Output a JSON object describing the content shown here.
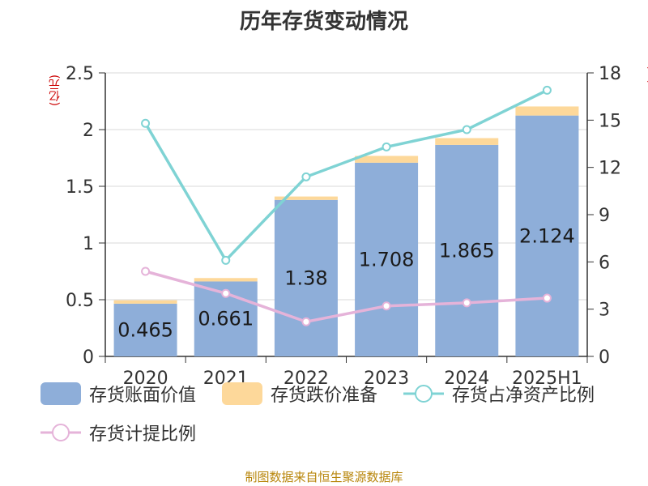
{
  "title": "历年存货变动情况",
  "unit_left": "(亿元)",
  "unit_right": "(%)",
  "source": "制图数据来自恒生聚源数据库",
  "colors": {
    "book_value": "#8eaed9",
    "impairment": "#fdd89a",
    "ratio_net_assets": "#7fd3d4",
    "provision_ratio": "#e5b3d9"
  },
  "legend": [
    {
      "label": "存货账面价值",
      "kind": "bar",
      "color_key": "book_value"
    },
    {
      "label": "存货跌价准备",
      "kind": "bar",
      "color_key": "impairment"
    },
    {
      "label": "存货占净资产比例",
      "kind": "line",
      "color_key": "ratio_net_assets"
    },
    {
      "label": "存货计提比例",
      "kind": "line",
      "color_key": "provision_ratio"
    }
  ],
  "chart_data": {
    "type": "bar",
    "title": "历年存货变动情况",
    "categories": [
      "2020",
      "2021",
      "2022",
      "2023",
      "2024",
      "2025H1"
    ],
    "y_left": {
      "min": 0,
      "max": 2.5,
      "ticks": [
        "0",
        "0.5",
        "1",
        "1.5",
        "2",
        "2.5"
      ],
      "tick_values": [
        0,
        0.5,
        1,
        1.5,
        2,
        2.5
      ]
    },
    "y_right": {
      "min": 0,
      "max": 18,
      "ticks": [
        "0",
        "3",
        "6",
        "9",
        "12",
        "15",
        "18"
      ],
      "tick_values": [
        0,
        3,
        6,
        9,
        12,
        15,
        18
      ]
    },
    "grid": true,
    "legend_position": "bottom",
    "series": [
      {
        "name": "存货账面价值",
        "kind": "bar",
        "axis": "left",
        "stack": "inv",
        "color_key": "book_value",
        "values": [
          0.465,
          0.661,
          1.38,
          1.708,
          1.865,
          2.124
        ],
        "labels": [
          "0.465",
          "0.661",
          "1.38",
          "1.708",
          "1.865",
          "2.124"
        ]
      },
      {
        "name": "存货跌价准备",
        "kind": "bar",
        "axis": "left",
        "stack": "inv",
        "color_key": "impairment",
        "values": [
          0.03,
          0.03,
          0.03,
          0.06,
          0.06,
          0.08
        ]
      },
      {
        "name": "存货占净资产比例",
        "kind": "line",
        "axis": "right",
        "color_key": "ratio_net_assets",
        "values": [
          14.8,
          6.1,
          11.4,
          13.3,
          14.4,
          16.9
        ]
      },
      {
        "name": "存货计提比例",
        "kind": "line",
        "axis": "right",
        "color_key": "provision_ratio",
        "values": [
          5.4,
          4.0,
          2.2,
          3.2,
          3.4,
          3.7
        ]
      }
    ]
  }
}
